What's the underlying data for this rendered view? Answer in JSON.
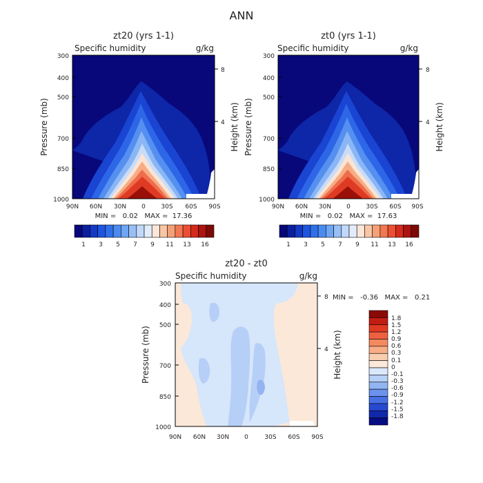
{
  "title": "ANN",
  "chart_data": [
    {
      "type": "heatmap",
      "id": "panel-zt20",
      "title": "zt20 (yrs 1-1)",
      "left_label": "Specific humidity",
      "right_label": "g/kg",
      "ylabel": "Pressure (mb)",
      "ylabel_right": "Height (km)",
      "yticks": [
        "300",
        "400",
        "500",
        "700",
        "850",
        "1000"
      ],
      "ytick_values": [
        300,
        400,
        500,
        700,
        850,
        1000
      ],
      "yticks_right": [
        "8",
        "4"
      ],
      "xticks": [
        "90N",
        "60N",
        "30N",
        "0",
        "30S",
        "60S",
        "90S"
      ],
      "xlim": [
        90,
        -90
      ],
      "ylim": [
        1000,
        300
      ],
      "stats": "MIN =   0.02   MAX =  17.36",
      "min": 0.02,
      "max": 17.36,
      "colorbar": {
        "labels": [
          "1",
          "3",
          "5",
          "7",
          "9",
          "11",
          "13",
          "16"
        ],
        "colors": [
          "#08087a",
          "#0c1f9e",
          "#1439c4",
          "#1e55de",
          "#2f70ea",
          "#4a8bef",
          "#6fa6f3",
          "#98c0f6",
          "#c1d8f9",
          "#e2ecfb",
          "#fbe6d8",
          "#f9c6a5",
          "#f5a077",
          "#f27853",
          "#ec4f34",
          "#d42a1c",
          "#ad1410",
          "#7d0a06"
        ]
      }
    },
    {
      "type": "heatmap",
      "id": "panel-zt0",
      "title": "zt0 (yrs 1-1)",
      "left_label": "Specific humidity",
      "right_label": "g/kg",
      "ylabel": "Pressure (mb)",
      "ylabel_right": "Height (km)",
      "yticks": [
        "300",
        "400",
        "500",
        "700",
        "850",
        "1000"
      ],
      "ytick_values": [
        300,
        400,
        500,
        700,
        850,
        1000
      ],
      "yticks_right": [
        "8",
        "4"
      ],
      "xticks": [
        "90N",
        "60N",
        "30N",
        "0",
        "30S",
        "60S",
        "90S"
      ],
      "xlim": [
        90,
        -90
      ],
      "ylim": [
        1000,
        300
      ],
      "stats": "MIN =   0.02   MAX =  17.63",
      "min": 0.02,
      "max": 17.63,
      "colorbar": {
        "labels": [
          "1",
          "3",
          "5",
          "7",
          "9",
          "11",
          "13",
          "16"
        ],
        "colors": [
          "#08087a",
          "#0c1f9e",
          "#1439c4",
          "#1e55de",
          "#2f70ea",
          "#4a8bef",
          "#6fa6f3",
          "#98c0f6",
          "#c1d8f9",
          "#e2ecfb",
          "#fbe6d8",
          "#f9c6a5",
          "#f5a077",
          "#f27853",
          "#ec4f34",
          "#d42a1c",
          "#ad1410",
          "#7d0a06"
        ]
      }
    },
    {
      "type": "heatmap",
      "id": "panel-diff",
      "title": "zt20 - zt0",
      "left_label": "Specific humidity",
      "right_label": "g/kg",
      "ylabel": "Pressure (mb)",
      "ylabel_right": "Height (km)",
      "yticks": [
        "300",
        "400",
        "500",
        "700",
        "850",
        "1000"
      ],
      "ytick_values": [
        300,
        400,
        500,
        700,
        850,
        1000
      ],
      "yticks_right": [
        "8",
        "4"
      ],
      "xticks": [
        "90N",
        "60N",
        "30N",
        "0",
        "30S",
        "60S",
        "90S"
      ],
      "xlim": [
        90,
        -90
      ],
      "ylim": [
        1000,
        300
      ],
      "stats": "MIN =   -0.36   MAX =   0.21",
      "min": -0.36,
      "max": 0.21,
      "colorbar": {
        "labels": [
          "1.8",
          "1.5",
          "1.2",
          "0.9",
          "0.6",
          "0.3",
          "0.1",
          "0",
          "-0.1",
          "-0.3",
          "-0.6",
          "-0.9",
          "-1.2",
          "-1.5",
          "-1.8"
        ],
        "colors": [
          "#8b0a06",
          "#c21d12",
          "#e23a22",
          "#ef6040",
          "#f4895f",
          "#f7ad86",
          "#f9ceb0",
          "#fbe8d8",
          "#dbe8fb",
          "#b8d0f7",
          "#91b4f2",
          "#6b92ec",
          "#4670e3",
          "#2649cf",
          "#1228ab",
          "#080c82"
        ]
      }
    }
  ]
}
